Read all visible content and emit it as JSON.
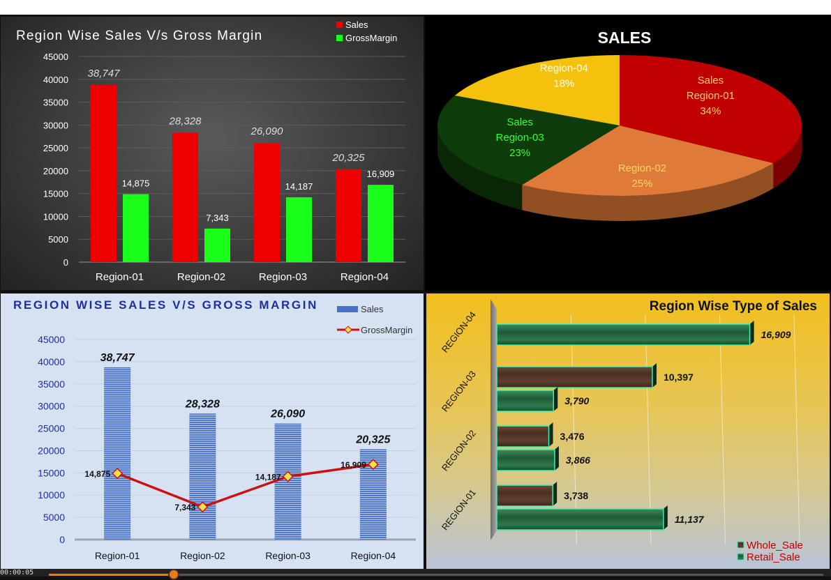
{
  "chart_data": [
    {
      "type": "bar",
      "title": "Region Wise Sales V/s Gross Margin",
      "categories": [
        "Region-01",
        "Region-02",
        "Region-03",
        "Region-04"
      ],
      "series": [
        {
          "name": "Sales",
          "values": [
            38747,
            28328,
            26090,
            20325
          ],
          "labels": [
            "38,747",
            "28,328",
            "26,090",
            "20,325"
          ],
          "color": "#ee0000"
        },
        {
          "name": "GrossMargin",
          "values": [
            14875,
            7343,
            14187,
            16909
          ],
          "labels": [
            "14,875",
            "7,343",
            "14,187",
            "16,909"
          ],
          "color": "#19ff19"
        }
      ],
      "yticks": [
        "0",
        "5000",
        "10000",
        "15000",
        "20000",
        "25000",
        "30000",
        "35000",
        "40000",
        "45000"
      ],
      "ylim": [
        0,
        45000
      ],
      "legend": "top-right",
      "grid": true,
      "background": "#3b3b3b"
    },
    {
      "type": "pie",
      "title": "SALES",
      "slices": [
        {
          "series_label": "Sales",
          "label": "Region-01",
          "percent": "34%",
          "value": 34,
          "color": "#c00000",
          "text_color": "#ffd966"
        },
        {
          "series_label": "",
          "label": "Region-02",
          "percent": "25%",
          "value": 25,
          "color": "#e07a38",
          "text_color": "#ffd966"
        },
        {
          "series_label": "Sales",
          "label": "Region-03",
          "percent": "23%",
          "value": 23,
          "color": "#0e3b0a",
          "text_color": "#33ff33"
        },
        {
          "series_label": "",
          "label": "Region-04",
          "percent": "18%",
          "value": 18,
          "color": "#f4c20d",
          "text_color": "#ffffff"
        }
      ],
      "style": "3d",
      "background": "#000000"
    },
    {
      "type": "bar",
      "title": "REGION WISE SALES V/S GROSS MARGIN",
      "categories": [
        "Region-01",
        "Region-02",
        "Region-03",
        "Region-04"
      ],
      "series": [
        {
          "name": "Sales",
          "kind": "bar",
          "values": [
            38747,
            28328,
            26090,
            20325
          ],
          "labels": [
            "38,747",
            "28,328",
            "26,090",
            "20,325"
          ],
          "color": "#4a72c4"
        },
        {
          "name": "GrossMargin",
          "kind": "line",
          "values": [
            14875,
            7343,
            14187,
            16909
          ],
          "labels": [
            "14,875",
            "7,343",
            "14,187",
            "16,909"
          ],
          "color": "#cc1111"
        }
      ],
      "yticks": [
        "0",
        "5000",
        "10000",
        "15000",
        "20000",
        "25000",
        "30000",
        "35000",
        "40000",
        "45000"
      ],
      "ylim": [
        0,
        45000
      ],
      "legend": "top-right",
      "grid": true,
      "background": "#d6e2f2"
    },
    {
      "type": "bar",
      "orientation": "horizontal",
      "title": "Region Wise Type of Sales",
      "categories": [
        "REGION-04",
        "REGION-03",
        "REGION-02",
        "REGION-01"
      ],
      "series": [
        {
          "name": "Whole_Sale",
          "values": [
            null,
            10397,
            3476,
            3738
          ],
          "labels": [
            "",
            "10,397",
            "3,476",
            "3,738"
          ],
          "color": "#5b3a2a"
        },
        {
          "name": "Retail_Sale",
          "values": [
            16909,
            3790,
            3866,
            11137
          ],
          "labels": [
            "16,909",
            "3,790",
            "3,866",
            "11,137"
          ],
          "color": "#2e6b45"
        }
      ],
      "xlim": [
        0,
        18000
      ],
      "legend": "bottom-right",
      "grid": true,
      "legend_text_color": "#c00000"
    }
  ],
  "player": {
    "timecode": "00:00:05",
    "progress": 0.16,
    "accent": "#f07a12"
  }
}
